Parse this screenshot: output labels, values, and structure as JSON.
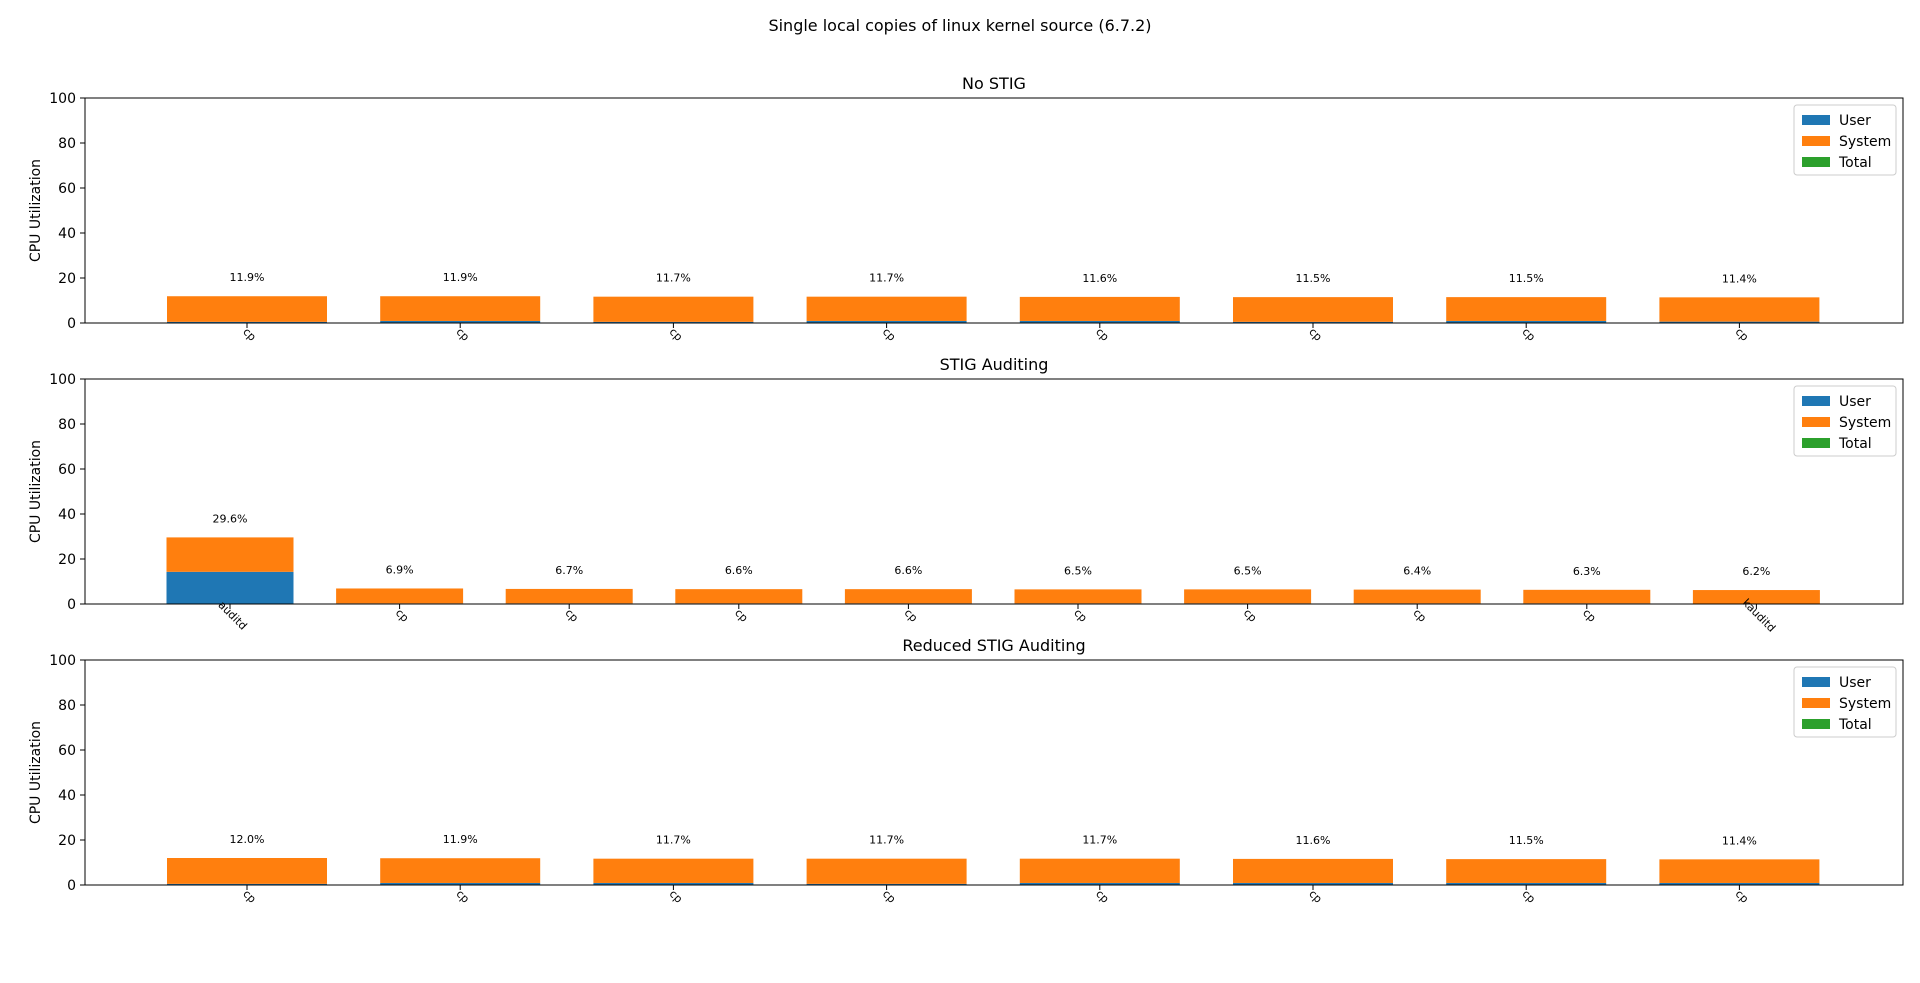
{
  "figure_title": "Single local copies of linux kernel source (6.7.2)",
  "colors": {
    "user": "#1f77b4",
    "system": "#ff7f0e",
    "total": "#2ca02c"
  },
  "chart_data": [
    {
      "type": "bar",
      "stacked": true,
      "title": "No STIG",
      "ylabel": "CPU Utilization",
      "ylim": [
        0,
        100
      ],
      "yticks": [
        0,
        20,
        40,
        60,
        80,
        100
      ],
      "legend": {
        "placement": "top-right",
        "entries": [
          "User",
          "System",
          "Total"
        ]
      },
      "categories": [
        "cp",
        "cp",
        "cp",
        "cp",
        "cp",
        "cp",
        "cp",
        "cp"
      ],
      "series": [
        {
          "name": "User",
          "values": [
            0.5,
            0.9,
            0.5,
            0.9,
            0.9,
            0.5,
            0.9,
            0.6
          ]
        },
        {
          "name": "System",
          "values": [
            11.4,
            11.0,
            11.2,
            10.8,
            10.7,
            11.0,
            10.6,
            10.8
          ]
        }
      ],
      "labels": [
        "11.9%",
        "11.9%",
        "11.7%",
        "11.7%",
        "11.6%",
        "11.5%",
        "11.5%",
        "11.4%"
      ]
    },
    {
      "type": "bar",
      "stacked": true,
      "title": "STIG Auditing",
      "ylabel": "CPU Utilization",
      "ylim": [
        0,
        100
      ],
      "yticks": [
        0,
        20,
        40,
        60,
        80,
        100
      ],
      "legend": {
        "placement": "top-right",
        "entries": [
          "User",
          "System",
          "Total"
        ]
      },
      "categories": [
        "auditd",
        "cp",
        "cp",
        "cp",
        "cp",
        "cp",
        "cp",
        "cp",
        "cp",
        "kauditd"
      ],
      "series": [
        {
          "name": "User",
          "values": [
            14.3,
            0.3,
            0.3,
            0.3,
            0.3,
            0.3,
            0.3,
            0.3,
            0.3,
            0.0
          ]
        },
        {
          "name": "System",
          "values": [
            15.3,
            6.6,
            6.4,
            6.3,
            6.3,
            6.2,
            6.2,
            6.1,
            6.0,
            6.2
          ]
        }
      ],
      "labels": [
        "29.6%",
        "6.9%",
        "6.7%",
        "6.6%",
        "6.6%",
        "6.5%",
        "6.5%",
        "6.4%",
        "6.3%",
        "6.2%"
      ]
    },
    {
      "type": "bar",
      "stacked": true,
      "title": "Reduced STIG Auditing",
      "ylabel": "CPU Utilization",
      "ylim": [
        0,
        100
      ],
      "yticks": [
        0,
        20,
        40,
        60,
        80,
        100
      ],
      "legend": {
        "placement": "top-right",
        "entries": [
          "User",
          "System",
          "Total"
        ]
      },
      "categories": [
        "cp",
        "cp",
        "cp",
        "cp",
        "cp",
        "cp",
        "cp",
        "cp"
      ],
      "series": [
        {
          "name": "User",
          "values": [
            0.5,
            0.9,
            0.9,
            0.5,
            0.9,
            0.9,
            0.9,
            0.9
          ]
        },
        {
          "name": "System",
          "values": [
            11.5,
            11.0,
            10.8,
            11.2,
            10.8,
            10.7,
            10.6,
            10.5
          ]
        }
      ],
      "labels": [
        "12.0%",
        "11.9%",
        "11.7%",
        "11.7%",
        "11.7%",
        "11.6%",
        "11.5%",
        "11.4%"
      ]
    }
  ]
}
